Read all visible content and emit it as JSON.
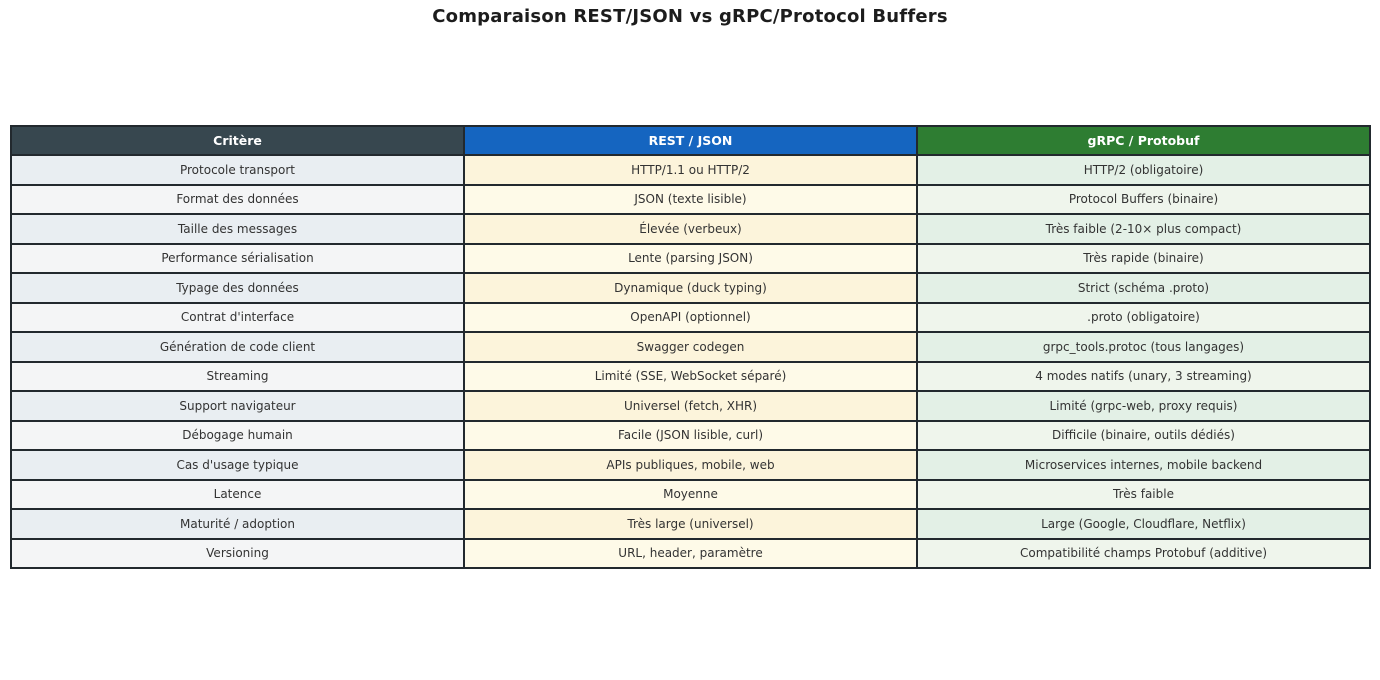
{
  "title": "Comparaison REST/JSON vs gRPC/Protocol Buffers",
  "colors": {
    "header_critere_bg": "#37474F",
    "header_rest_bg": "#1565C0",
    "header_grpc_bg": "#2E7D32",
    "header_text": "#FFFFFF",
    "border": "#22292E",
    "critere_row_odd": "#E9EEF2",
    "critere_row_even": "#F4F5F6",
    "rest_row_odd": "#FCF4DB",
    "rest_row_even": "#FEFAE8",
    "grpc_row_odd": "#E3F0E6",
    "grpc_row_even": "#EFF5EC"
  },
  "chart_data": {
    "type": "table",
    "title": "Comparaison REST/JSON vs gRPC/Protocol Buffers",
    "columns": [
      {
        "label": "Critère",
        "color": "#37474F"
      },
      {
        "label": "REST / JSON",
        "color": "#1565C0"
      },
      {
        "label": "gRPC / Protobuf",
        "color": "#2E7D32"
      }
    ],
    "rows": [
      {
        "critere": "Protocole transport",
        "rest": "HTTP/1.1 ou HTTP/2",
        "grpc": "HTTP/2 (obligatoire)"
      },
      {
        "critere": "Format des données",
        "rest": "JSON (texte lisible)",
        "grpc": "Protocol Buffers (binaire)"
      },
      {
        "critere": "Taille des messages",
        "rest": "Élevée (verbeux)",
        "grpc": "Très faible (2-10× plus compact)"
      },
      {
        "critere": "Performance sérialisation",
        "rest": "Lente (parsing JSON)",
        "grpc": "Très rapide (binaire)"
      },
      {
        "critere": "Typage des données",
        "rest": "Dynamique (duck typing)",
        "grpc": "Strict (schéma .proto)"
      },
      {
        "critere": "Contrat d'interface",
        "rest": "OpenAPI (optionnel)",
        "grpc": ".proto (obligatoire)"
      },
      {
        "critere": "Génération de code client",
        "rest": "Swagger codegen",
        "grpc": "grpc_tools.protoc (tous langages)"
      },
      {
        "critere": "Streaming",
        "rest": "Limité (SSE, WebSocket séparé)",
        "grpc": "4 modes natifs (unary, 3 streaming)"
      },
      {
        "critere": "Support navigateur",
        "rest": "Universel (fetch, XHR)",
        "grpc": "Limité (grpc-web, proxy requis)"
      },
      {
        "critere": "Débogage humain",
        "rest": "Facile (JSON lisible, curl)",
        "grpc": "Difficile (binaire, outils dédiés)"
      },
      {
        "critere": "Cas d'usage typique",
        "rest": "APIs publiques, mobile, web",
        "grpc": "Microservices internes, mobile backend"
      },
      {
        "critere": "Latence",
        "rest": "Moyenne",
        "grpc": "Très faible"
      },
      {
        "critere": "Maturité / adoption",
        "rest": "Très large (universel)",
        "grpc": "Large (Google, Cloudflare, Netflix)"
      },
      {
        "critere": "Versioning",
        "rest": "URL, header, paramètre",
        "grpc": "Compatibilité champs Protobuf (additive)"
      }
    ]
  }
}
